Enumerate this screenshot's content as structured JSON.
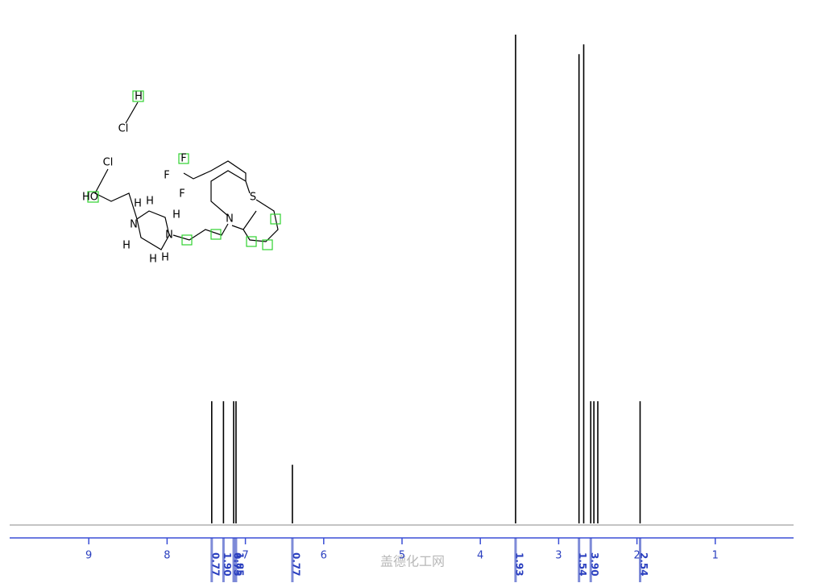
{
  "chart_data": {
    "type": "nmr",
    "x": [
      7.43,
      7.28,
      7.15,
      7.12,
      6.4,
      3.55,
      2.74,
      2.68,
      2.59,
      2.55,
      2.5,
      1.96
    ],
    "values": [
      25,
      25,
      25,
      25,
      12,
      100,
      96,
      98,
      25,
      25,
      25,
      25
    ],
    "color": "#000000",
    "xlim": [
      10,
      0
    ],
    "xticks": [
      9,
      8,
      7,
      6,
      5,
      4,
      3,
      2,
      1
    ],
    "ylim": [
      0,
      100
    ],
    "integrals": {
      "x": [
        7.43,
        7.28,
        7.15,
        7.12,
        6.4,
        3.55,
        2.74,
        2.59,
        1.96
      ],
      "values": [
        0.77,
        1.9,
        0.75,
        1.85,
        0.77,
        1.93,
        1.54,
        3.9,
        2.54
      ],
      "value_labels": [
        "0.77",
        "1.90",
        "0.75",
        "1.85",
        "0.77",
        "1.93",
        "1.54",
        "3.90",
        "2.54"
      ],
      "color": "#2a3fbf"
    },
    "molecule_labels": [
      "H",
      "Cl",
      "Cl",
      "HO",
      "F",
      "F",
      "F",
      "S",
      "N",
      "N",
      "N",
      "H",
      "H",
      "H",
      "H",
      "H",
      "H"
    ],
    "watermark": "盖德化工网"
  }
}
